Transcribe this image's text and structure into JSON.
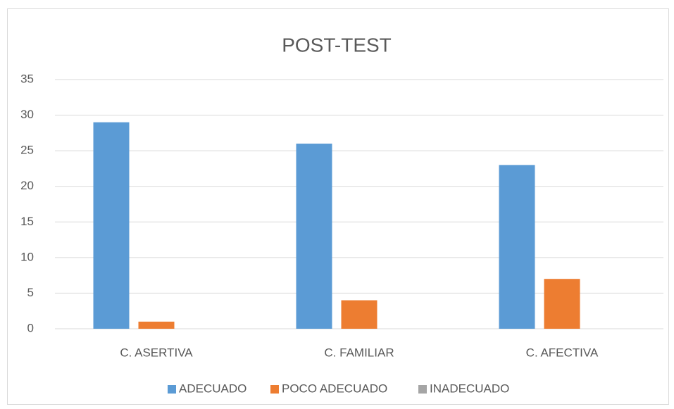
{
  "chart_data": {
    "type": "bar",
    "title": "POST-TEST",
    "categories": [
      "C. ASERTIVA",
      "C. FAMILIAR",
      "C. AFECTIVA"
    ],
    "series": [
      {
        "name": "ADECUADO",
        "color": "#5b9bd5",
        "values": [
          29,
          26,
          23
        ]
      },
      {
        "name": "POCO ADECUADO",
        "color": "#ed7d31",
        "values": [
          1,
          4,
          7
        ]
      },
      {
        "name": "INADECUADO",
        "color": "#a5a5a5",
        "values": [
          0,
          0,
          0
        ]
      }
    ],
    "ylim": [
      0,
      35
    ],
    "yticks": [
      0,
      5,
      10,
      15,
      20,
      25,
      30,
      35
    ],
    "grid": true,
    "legend": "bottom"
  }
}
